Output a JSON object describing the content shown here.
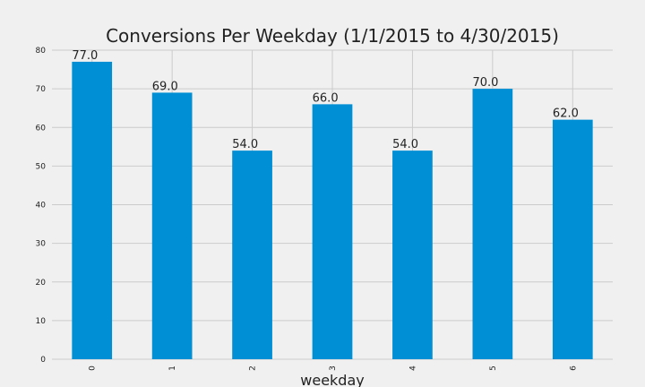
{
  "chart_data": {
    "type": "bar",
    "title": "Conversions Per Weekday (1/1/2015 to 4/30/2015)",
    "xlabel": "weekday",
    "ylabel": "",
    "categories": [
      "0",
      "1",
      "2",
      "3",
      "4",
      "5",
      "6"
    ],
    "values": [
      77.0,
      69.0,
      54.0,
      66.0,
      54.0,
      70.0,
      62.0
    ],
    "data_labels": [
      "77.0",
      "69.0",
      "54.0",
      "66.0",
      "54.0",
      "70.0",
      "62.0"
    ],
    "ylim": [
      0,
      80
    ],
    "yticks": [
      "0",
      "10",
      "20",
      "30",
      "40",
      "50",
      "60",
      "70",
      "80"
    ],
    "grid": true,
    "bar_color": "#008fd5",
    "background_color": "#f0f0f0",
    "grid_color": "#cbcbcb"
  }
}
